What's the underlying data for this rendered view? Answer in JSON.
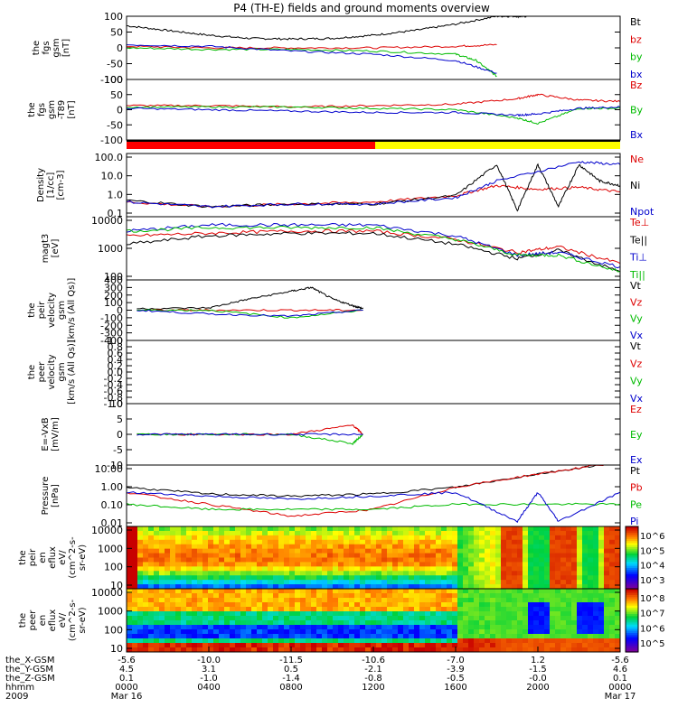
{
  "title": "P4 (TH-E) fields and ground moments overview",
  "panels": [
    {
      "id": "fgs",
      "ylabel": [
        "the",
        "fgs",
        "gsm",
        "[nT]"
      ],
      "ticks": [
        "100",
        "50",
        "0",
        "-50",
        "-100"
      ],
      "legend": [
        {
          "label": "Bt",
          "color": "#000000"
        },
        {
          "label": "bz",
          "color": "#dd0000"
        },
        {
          "label": "by",
          "color": "#00bb00"
        },
        {
          "label": "bx",
          "color": "#0000cc"
        }
      ]
    },
    {
      "id": "fgs2",
      "ylabel": [
        "the",
        "fgs",
        "gsm",
        "-T89",
        "[nT]"
      ],
      "ticks": [
        "100",
        "50",
        "0",
        "-50",
        "-100"
      ],
      "legend": [
        {
          "label": "Bz",
          "color": "#dd0000"
        },
        {
          "label": "By",
          "color": "#00bb00"
        },
        {
          "label": "Bx",
          "color": "#0000cc"
        }
      ]
    },
    {
      "id": "density",
      "ylabel": [
        "Density",
        "[1/cc]",
        "[cm-3]"
      ],
      "ticks": [
        "100.0",
        "10.0",
        "1.0",
        "0.1"
      ],
      "legend": [
        {
          "label": "Ne",
          "color": "#dd0000"
        },
        {
          "label": "Ni",
          "color": "#000000"
        },
        {
          "label": "Npot",
          "color": "#0000cc"
        }
      ]
    },
    {
      "id": "temp",
      "ylabel": [
        "magt3",
        "[eV]"
      ],
      "ticks": [
        "10000",
        "1000",
        "100"
      ],
      "legend": [
        {
          "label": "Te⊥",
          "color": "#dd0000"
        },
        {
          "label": "Te||",
          "color": "#000000"
        },
        {
          "label": "Ti⊥",
          "color": "#0000cc"
        },
        {
          "label": "Ti||",
          "color": "#00bb00"
        }
      ]
    },
    {
      "id": "vel1",
      "ylabel": [
        "the",
        "peir",
        "velocity",
        "gsm",
        "[km/s (All Qs)]"
      ],
      "ticks": [
        "400",
        "300",
        "200",
        "100",
        "0",
        "-100",
        "-200",
        "-300",
        "-400"
      ],
      "legend": [
        {
          "label": "Vt",
          "color": "#000000"
        },
        {
          "label": "Vz",
          "color": "#dd0000"
        },
        {
          "label": "Vy",
          "color": "#00bb00"
        },
        {
          "label": "Vx",
          "color": "#0000cc"
        }
      ]
    },
    {
      "id": "vel2",
      "ylabel": [
        "the",
        "peer",
        "velocity",
        "gsm",
        "[km/s (All Qs)]"
      ],
      "ticks": [
        "1.0",
        "0.8",
        "0.6",
        "0.4",
        "0.2",
        "0.0",
        "-0.2",
        "-0.4",
        "-0.6",
        "-0.8",
        "-1.0"
      ],
      "legend": [
        {
          "label": "Vt",
          "color": "#000000"
        },
        {
          "label": "Vz",
          "color": "#dd0000"
        },
        {
          "label": "Vy",
          "color": "#00bb00"
        },
        {
          "label": "Vx",
          "color": "#0000cc"
        }
      ]
    },
    {
      "id": "efield",
      "ylabel": [
        "E=-VxB",
        "[mV/m]"
      ],
      "ticks": [
        "10",
        "5",
        "0",
        "-5",
        "-10"
      ],
      "legend": [
        {
          "label": "Ez",
          "color": "#dd0000"
        },
        {
          "label": "Ey",
          "color": "#00bb00"
        },
        {
          "label": "Ex",
          "color": "#0000cc"
        }
      ]
    },
    {
      "id": "pressure",
      "ylabel": [
        "Pressure",
        "[nPa]"
      ],
      "ticks": [
        "10.00",
        "1.00",
        "0.10",
        "0.01"
      ],
      "legend": [
        {
          "label": "Pt",
          "color": "#000000"
        },
        {
          "label": "Pb",
          "color": "#dd0000"
        },
        {
          "label": "Pe",
          "color": "#00bb00"
        },
        {
          "label": "Pi",
          "color": "#0000cc"
        }
      ]
    },
    {
      "id": "spec_ion",
      "ylabel": [
        "the",
        "peir",
        "en",
        "eflux",
        "eV/",
        "(cm^2-s-",
        "sr-eV)"
      ],
      "ticks": [
        "10000",
        "1000",
        "100",
        "10"
      ],
      "colorbar": [
        "10^6",
        "10^5",
        "10^4",
        "10^3"
      ]
    },
    {
      "id": "spec_ele",
      "ylabel": [
        "the",
        "peer",
        "en",
        "eflux",
        "eV/",
        "(cm^2-s-",
        "sr-eV)"
      ],
      "ticks": [
        "10000",
        "1000",
        "100",
        "10"
      ],
      "colorbar": [
        "10^8",
        "10^7",
        "10^6",
        "10^5"
      ]
    }
  ],
  "xaxis": {
    "rows": [
      {
        "label": "the_X-GSM",
        "values": [
          "-5.6",
          "-10.0",
          "-11.5",
          "-10.6",
          "-7.0",
          "1.2",
          "-5.6"
        ]
      },
      {
        "label": "the_Y-GSM",
        "values": [
          "4.5",
          "3.1",
          "0.5",
          "-2.1",
          "-3.9",
          "-1.5",
          "4.6"
        ]
      },
      {
        "label": "the_Z-GSM",
        "values": [
          "0.1",
          "-1.0",
          "-1.4",
          "-0.8",
          "-0.5",
          "-0.0",
          "0.1"
        ]
      },
      {
        "label": "hhmm",
        "values": [
          "0000",
          "0400",
          "0800",
          "1200",
          "1600",
          "2000",
          "0000"
        ]
      },
      {
        "label": "2009",
        "values": [
          "Mar 16",
          "",
          "",
          "",
          "",
          "",
          "Mar 17"
        ]
      }
    ]
  },
  "chart_data": {
    "type": "line",
    "title": "P4 (TH-E) fields and ground moments overview",
    "x_time": [
      "0000",
      "0400",
      "0800",
      "1200",
      "1600",
      "2000",
      "0000"
    ],
    "x_range": [
      "2009 Mar 16 0000",
      "2009 Mar 17 0000"
    ],
    "panels": [
      {
        "name": "the fgs gsm [nT]",
        "ylim": [
          -100,
          100
        ],
        "series": [
          {
            "name": "Bt",
            "x_hours": [
              0,
              2,
              4,
              6,
              8,
              10,
              12,
              14,
              16,
              18,
              19,
              19.5
            ],
            "values": [
              70,
              55,
              40,
              30,
              28,
              30,
              40,
              55,
              75,
              100,
              100,
              100
            ]
          },
          {
            "name": "bz",
            "x_hours": [
              0,
              4,
              8,
              12,
              16,
              18
            ],
            "values": [
              5,
              0,
              0,
              0,
              5,
              10
            ]
          },
          {
            "name": "by",
            "x_hours": [
              0,
              4,
              8,
              12,
              16,
              17,
              18
            ],
            "values": [
              0,
              -5,
              -5,
              -10,
              -20,
              -40,
              -90
            ]
          },
          {
            "name": "bx",
            "x_hours": [
              0,
              4,
              8,
              12,
              16,
              18
            ],
            "values": [
              10,
              5,
              -10,
              -20,
              -40,
              -80
            ]
          }
        ]
      },
      {
        "name": "the fgs gsm -T89 [nT]",
        "ylim": [
          -120,
          100
        ],
        "series": [
          {
            "name": "Bz",
            "x_hours": [
              0,
              4,
              8,
              12,
              16,
              19,
              20,
              22,
              24
            ],
            "values": [
              5,
              5,
              0,
              5,
              10,
              30,
              45,
              25,
              20
            ]
          },
          {
            "name": "By",
            "x_hours": [
              0,
              4,
              8,
              12,
              16,
              19,
              20,
              22,
              24
            ],
            "values": [
              0,
              0,
              0,
              -5,
              -10,
              -40,
              -60,
              -5,
              -5
            ]
          },
          {
            "name": "Bx",
            "x_hours": [
              0,
              4,
              8,
              12,
              16,
              19,
              20,
              22,
              24
            ],
            "values": [
              -5,
              -10,
              -15,
              -20,
              -20,
              -30,
              -25,
              -5,
              0
            ]
          }
        ]
      },
      {
        "name": "Density [1/cc]",
        "yscale": "log",
        "ylim": [
          0.1,
          100
        ],
        "series": [
          {
            "name": "Ne",
            "x_hours": [
              0,
              4,
              8,
              12,
              16,
              18,
              20,
              22,
              24
            ],
            "values": [
              0.5,
              0.3,
              0.4,
              0.5,
              1.0,
              3.0,
              2.0,
              2.5,
              1.5
            ]
          },
          {
            "name": "Ni",
            "x_hours": [
              0,
              4,
              8,
              12,
              16,
              18,
              19,
              20,
              21,
              22,
              23,
              24
            ],
            "values": [
              0.6,
              0.3,
              0.4,
              0.4,
              1.0,
              30,
              0.2,
              30,
              0.3,
              30,
              5,
              3
            ]
          },
          {
            "name": "Npot",
            "x_hours": [
              0,
              4,
              8,
              12,
              16,
              18,
              22,
              24
            ],
            "values": [
              0.5,
              0.3,
              0.4,
              0.4,
              0.8,
              5,
              40,
              30
            ]
          }
        ]
      },
      {
        "name": "magt3 [eV]",
        "yscale": "log",
        "ylim": [
          50,
          10000
        ],
        "series": [
          {
            "name": "Te⊥",
            "x_hours": [
              0,
              4,
              8,
              12,
              16,
              19,
              21,
              24
            ],
            "values": [
              2000,
              2500,
              3000,
              3000,
              1500,
              500,
              800,
              200
            ]
          },
          {
            "name": "Te||",
            "x_hours": [
              0,
              4,
              8,
              12,
              16,
              19,
              21,
              24
            ],
            "values": [
              1000,
              2000,
              2500,
              2500,
              1000,
              300,
              600,
              100
            ]
          },
          {
            "name": "Ti⊥",
            "x_hours": [
              0,
              4,
              8,
              12,
              16,
              19,
              21,
              24
            ],
            "values": [
              3000,
              5000,
              5000,
              5000,
              2000,
              400,
              500,
              150
            ]
          },
          {
            "name": "Ti||",
            "x_hours": [
              0,
              4,
              8,
              12,
              16,
              19,
              21,
              24
            ],
            "values": [
              3000,
              4000,
              4000,
              4000,
              1500,
              400,
              400,
              100
            ]
          }
        ]
      },
      {
        "name": "the peir velocity gsm [km/s (All Qs)]",
        "ylim": [
          -400,
          400
        ],
        "series": [
          {
            "name": "Vt",
            "x_hours": [
              0.5,
              4,
              6,
              8,
              9,
              10,
              11,
              11.5
            ],
            "values": [
              20,
              30,
              150,
              250,
              300,
              150,
              60,
              20
            ]
          },
          {
            "name": "Vz",
            "x_hours": [
              0.5,
              4,
              8,
              11.5
            ],
            "values": [
              0,
              0,
              0,
              0
            ]
          },
          {
            "name": "Vy",
            "x_hours": [
              0.5,
              4,
              8,
              11.5
            ],
            "values": [
              0,
              0,
              -100,
              0
            ]
          },
          {
            "name": "Vx",
            "x_hours": [
              0.5,
              4,
              8,
              11.5
            ],
            "values": [
              0,
              -50,
              -80,
              0
            ]
          }
        ]
      },
      {
        "name": "the peer velocity gsm [km/s (All Qs)]",
        "ylim": [
          -1,
          1
        ],
        "series": []
      },
      {
        "name": "E=-VxB [mV/m]",
        "ylim": [
          -10,
          10
        ],
        "series": [
          {
            "name": "Ez",
            "x_hours": [
              0.5,
              4,
              8,
              11,
              11.5
            ],
            "values": [
              0,
              0,
              0,
              3,
              0
            ]
          },
          {
            "name": "Ey",
            "x_hours": [
              0.5,
              4,
              8,
              11,
              11.5
            ],
            "values": [
              0,
              0,
              0,
              -3,
              0
            ]
          },
          {
            "name": "Ex",
            "x_hours": [
              0.5,
              4,
              8,
              11.5
            ],
            "values": [
              0,
              0,
              0,
              0
            ]
          }
        ]
      },
      {
        "name": "Pressure [nPa]",
        "yscale": "log",
        "ylim": [
          0.005,
          20
        ],
        "series": [
          {
            "name": "Pt",
            "x_hours": [
              0,
              4,
              8,
              12,
              16,
              20,
              24
            ],
            "values": [
              1.0,
              0.4,
              0.3,
              0.4,
              1.0,
              6,
              30
            ]
          },
          {
            "name": "Pb",
            "x_hours": [
              0,
              4,
              8,
              12,
              16,
              20,
              24
            ],
            "values": [
              0.5,
              0.1,
              0.02,
              0.05,
              1.0,
              6,
              30
            ]
          },
          {
            "name": "Pe",
            "x_hours": [
              0,
              4,
              8,
              12,
              16,
              20,
              24
            ],
            "values": [
              0.1,
              0.05,
              0.05,
              0.05,
              0.1,
              0.1,
              0.1
            ]
          },
          {
            "name": "Pi",
            "x_hours": [
              0,
              4,
              8,
              12,
              16,
              19,
              20,
              21,
              24
            ],
            "values": [
              0.5,
              0.3,
              0.2,
              0.3,
              0.5,
              0.01,
              0.5,
              0.01,
              0.5
            ]
          }
        ]
      },
      {
        "name": "the peir en eflux eV/(cm^2-s-sr-eV)",
        "type": "heatmap",
        "ylim": [
          10,
          10000
        ],
        "colorbar": [
          "10^3",
          "10^6"
        ]
      },
      {
        "name": "the peer en eflux eV/(cm^2-s-sr-eV)",
        "type": "heatmap",
        "ylim": [
          10,
          10000
        ],
        "colorbar": [
          "10^5",
          "10^8"
        ]
      }
    ]
  }
}
